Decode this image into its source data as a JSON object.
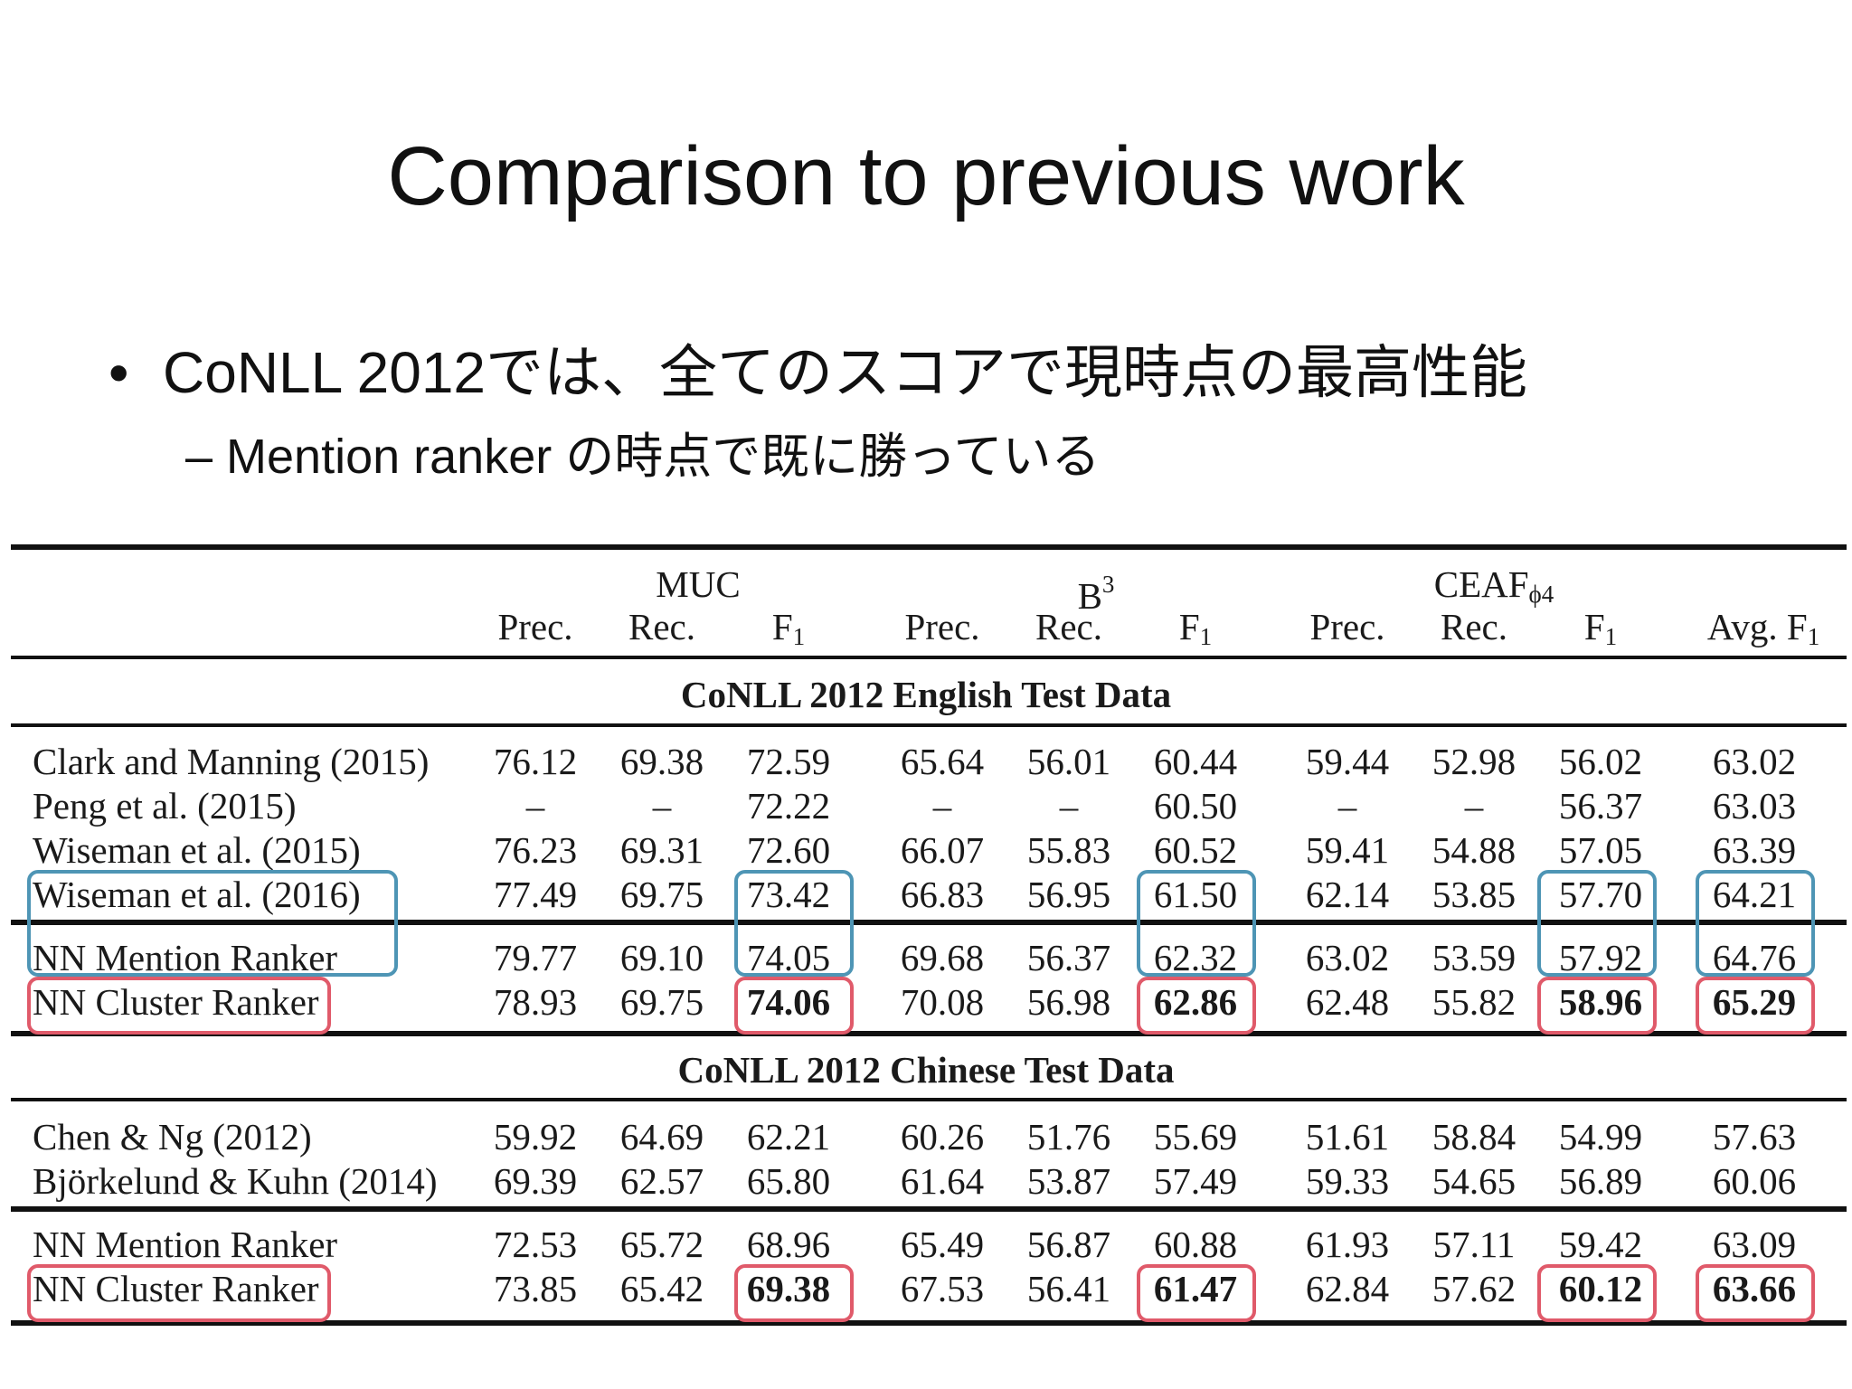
{
  "title": "Comparison to previous work",
  "bullet": {
    "marker": "•",
    "text": "CoNLL 2012では、全てのスコアで現時点の最高性能"
  },
  "subbullet": {
    "text": "– Mention ranker の時点で既に勝っている"
  },
  "table": {
    "groups": {
      "muc": "MUC",
      "b3": "B",
      "b3_sup": "3",
      "ceaf": "CEAF",
      "ceaf_sub": "ϕ4"
    },
    "columns": {
      "prec": "Prec.",
      "rec": "Rec.",
      "f": "F",
      "f_sub": "1",
      "avg": "Avg. F",
      "avg_sub": "1"
    },
    "sections": [
      {
        "title": "CoNLL 2012 English Test Data",
        "blocks": [
          [
            {
              "name": "Clark and Manning (2015)",
              "values": [
                "76.12",
                "69.38",
                "72.59",
                "65.64",
                "56.01",
                "60.44",
                "59.44",
                "52.98",
                "56.02",
                "63.02"
              ]
            },
            {
              "name": "Peng et al. (2015)",
              "values": [
                "–",
                "–",
                "72.22",
                "–",
                "–",
                "60.50",
                "–",
                "–",
                "56.37",
                "63.03"
              ]
            },
            {
              "name": "Wiseman et al. (2015)",
              "values": [
                "76.23",
                "69.31",
                "72.60",
                "66.07",
                "55.83",
                "60.52",
                "59.41",
                "54.88",
                "57.05",
                "63.39"
              ]
            },
            {
              "name": "Wiseman et al. (2016)",
              "values": [
                "77.49",
                "69.75",
                "73.42",
                "66.83",
                "56.95",
                "61.50",
                "62.14",
                "53.85",
                "57.70",
                "64.21"
              ]
            }
          ],
          [
            {
              "name": "NN Mention Ranker",
              "values": [
                "79.77",
                "69.10",
                "74.05",
                "69.68",
                "56.37",
                "62.32",
                "63.02",
                "53.59",
                "57.92",
                "64.76"
              ]
            },
            {
              "name": "NN Cluster Ranker",
              "values": [
                "78.93",
                "69.75",
                "74.06",
                "70.08",
                "56.98",
                "62.86",
                "62.48",
                "55.82",
                "58.96",
                "65.29"
              ]
            }
          ]
        ]
      },
      {
        "title": "CoNLL 2012 Chinese Test Data",
        "blocks": [
          [
            {
              "name": "Chen & Ng (2012)",
              "values": [
                "59.92",
                "64.69",
                "62.21",
                "60.26",
                "51.76",
                "55.69",
                "51.61",
                "58.84",
                "54.99",
                "57.63"
              ]
            },
            {
              "name": "Björkelund & Kuhn (2014)",
              "values": [
                "69.39",
                "62.57",
                "65.80",
                "61.64",
                "53.87",
                "57.49",
                "59.33",
                "54.65",
                "56.89",
                "60.06"
              ]
            }
          ],
          [
            {
              "name": "NN Mention Ranker",
              "values": [
                "72.53",
                "65.72",
                "68.96",
                "65.49",
                "56.87",
                "60.88",
                "61.93",
                "57.11",
                "59.42",
                "63.09"
              ]
            },
            {
              "name": "NN Cluster Ranker",
              "values": [
                "73.85",
                "65.42",
                "69.38",
                "67.53",
                "56.41",
                "61.47",
                "62.84",
                "57.62",
                "60.12",
                "63.66"
              ]
            }
          ]
        ]
      }
    ]
  },
  "highlight_colors": {
    "previous_best": "#4e95b5",
    "new_best": "#e05a6a"
  }
}
